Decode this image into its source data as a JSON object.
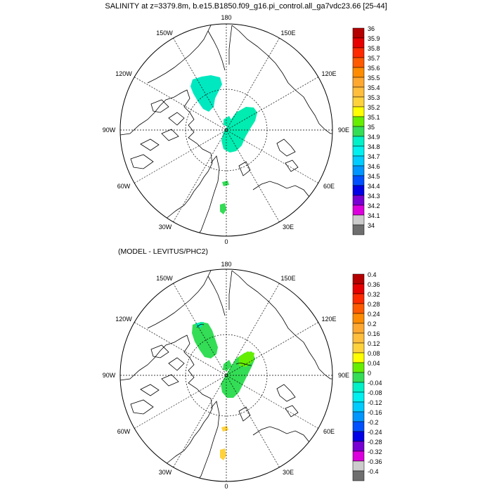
{
  "title": "SALINITY at z=3379.8m, b.e15.B1850.f09_g16.pi_control.all_ga7vdc23.66 [25-44]",
  "subtitle": "(MODEL - LEVITUS/PHC2)",
  "longitude_labels": {
    "top": "180",
    "topleft": "150W",
    "topright": "150E",
    "upleft": "120W",
    "upright": "120E",
    "left": "90W",
    "right": "90E",
    "lowleft": "60W",
    "lowright": "60E",
    "botleft": "30W",
    "botright": "30E",
    "bottom": "0"
  },
  "colorbars": [
    {
      "labels": [
        "36",
        "35.9",
        "35.8",
        "35.7",
        "35.6",
        "35.5",
        "35.4",
        "35.3",
        "35.2",
        "35.1",
        "35",
        "34.9",
        "34.8",
        "34.7",
        "34.6",
        "34.5",
        "34.4",
        "34.3",
        "34.2",
        "34.1",
        "34"
      ],
      "colors": [
        "#b40000",
        "#e60000",
        "#ff2a00",
        "#ff5a00",
        "#ff8c00",
        "#ffa830",
        "#ffbe3c",
        "#ffd23c",
        "#ffff00",
        "#66ee00",
        "#33dd55",
        "#00f0c8",
        "#00f0f0",
        "#00ccff",
        "#0096ff",
        "#0050ff",
        "#0000e6",
        "#7800d2",
        "#dc00dc",
        "#cccccc",
        "#6e6e6e"
      ]
    },
    {
      "labels": [
        "0.4",
        "0.36",
        "0.32",
        "0.28",
        "0.24",
        "0.2",
        "0.16",
        "0.12",
        "0.08",
        "0.04",
        "0",
        "-0.04",
        "-0.08",
        "-0.12",
        "-0.16",
        "-0.2",
        "-0.24",
        "-0.28",
        "-0.32",
        "-0.36",
        "-0.4"
      ],
      "colors": [
        "#b40000",
        "#e60000",
        "#ff2a00",
        "#ff5a00",
        "#ff8c00",
        "#ffa830",
        "#ffbe3c",
        "#ffd23c",
        "#ffff00",
        "#66ee00",
        "#33dd55",
        "#00f0c8",
        "#00f0f0",
        "#00ccff",
        "#0096ff",
        "#0050ff",
        "#0000e6",
        "#7800d2",
        "#dc00dc",
        "#cccccc",
        "#6e6e6e"
      ]
    }
  ],
  "panel_colors": {
    "top_canada": "#00e8c0",
    "top_eurasian": "#00ecb0",
    "top_atlantic": "#33dd55",
    "bottom_canada": "#33dd55",
    "bottom_eurasian": "#33dd55",
    "bottom_ridge": "#66ee00",
    "bottom_atlantic": "#ffd23c",
    "coastline": "#000000",
    "graticule": "#000000"
  }
}
